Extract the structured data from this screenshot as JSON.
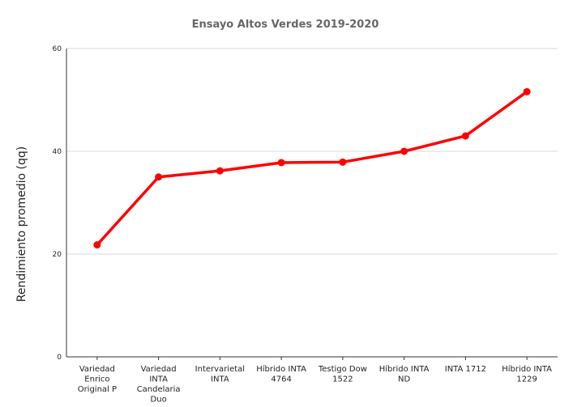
{
  "chart_data": {
    "type": "line",
    "title": "Ensayo Altos Verdes 2019-2020",
    "xlabel": "",
    "ylabel": "Rendimiento promedio (qq)",
    "ylim": [
      0,
      60
    ],
    "yticks": [
      "0",
      "20",
      "40",
      "60"
    ],
    "grid": true,
    "legend": "none",
    "color": "#ff0000",
    "categories": [
      [
        "Variedad",
        "Enrico",
        "Original P"
      ],
      [
        "Variedad",
        "INTA",
        "Candelaria",
        "Duo"
      ],
      [
        "Intervarietal",
        "INTA"
      ],
      [
        "Híbrido INTA",
        "4764"
      ],
      [
        "Testigo Dow",
        "1522"
      ],
      [
        "Híbrido INTA",
        "ND"
      ],
      [
        "INTA 1712"
      ],
      [
        "Híbrido INTA",
        "1229"
      ]
    ],
    "values": [
      21.8,
      35.0,
      36.2,
      37.8,
      37.9,
      40.0,
      43.0,
      51.6
    ]
  }
}
